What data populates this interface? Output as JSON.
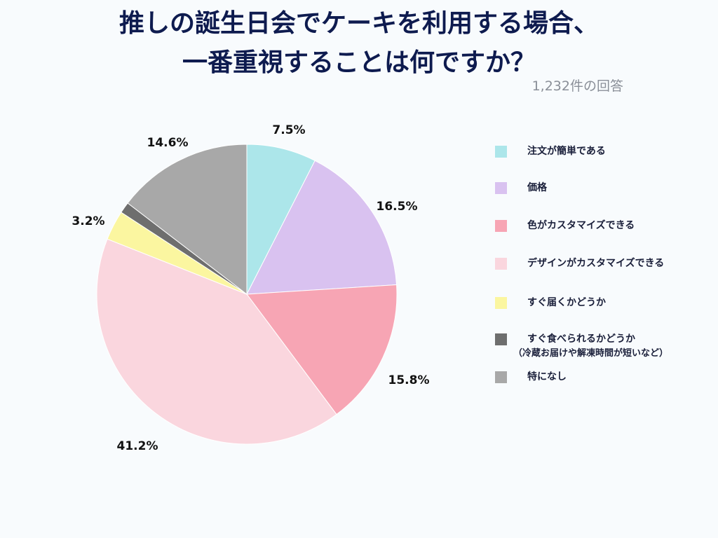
{
  "chart_data": {
    "type": "pie",
    "title_lines": [
      "推しの誕生日会でケーキを利用する場合、",
      "一番重視することは何ですか？"
    ],
    "subtitle": "1,232件の回答",
    "slices": [
      {
        "name": "注文が簡単である",
        "value": 7.5,
        "label": "7.5%",
        "color": "#ace6ea"
      },
      {
        "name": "価格",
        "value": 16.5,
        "label": "16.5%",
        "color": "#d9c2f0"
      },
      {
        "name": "色がカスタマイズできる",
        "value": 15.8,
        "label": "15.8%",
        "color": "#f7a5b4"
      },
      {
        "name": "デザインがカスタマイズできる",
        "value": 41.2,
        "label": "41.2%",
        "color": "#fad6de"
      },
      {
        "name": "すぐ届くかどうか",
        "value": 3.2,
        "label": "3.2%",
        "color": "#fbf6a0"
      },
      {
        "name": "すぐ食べられるかどうか",
        "sub": "（冷蔵お届けや解凍時間が短いなど）",
        "value": 1.2,
        "label": "",
        "color": "#6e6e6e"
      },
      {
        "name": "特になし",
        "value": 14.6,
        "label": "14.6%",
        "color": "#a8a8a8"
      }
    ],
    "legend_position": "right"
  }
}
